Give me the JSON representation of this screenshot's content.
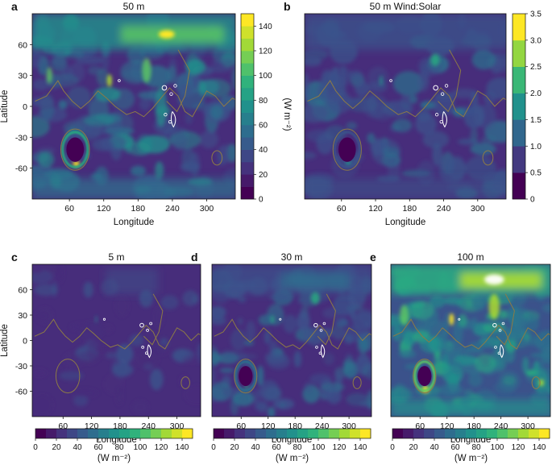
{
  "chart_data": [
    {
      "panel": "a",
      "title": "50 m",
      "type": "heatmap",
      "xlabel": "Longitude",
      "ylabel": "Latitude",
      "x_ticks": [
        60,
        120,
        180,
        240,
        300
      ],
      "y_ticks": [
        60,
        30,
        0,
        -30,
        -60
      ],
      "colorbar": {
        "orientation": "vertical",
        "label": "(W m⁻²)",
        "range": [
          0,
          150
        ],
        "ticks": [
          0,
          20,
          40,
          60,
          80,
          100,
          120,
          140
        ]
      }
    },
    {
      "panel": "b",
      "title": "50 m Wind:Solar",
      "type": "heatmap",
      "xlabel": "Longitude",
      "x_ticks": [
        60,
        120,
        180,
        240,
        300
      ],
      "colorbar": {
        "orientation": "vertical",
        "label": "",
        "range": [
          0,
          3.5
        ],
        "ticks": [
          "0",
          "0.5",
          "1.0",
          "1.5",
          "2.0",
          "2.5",
          "3.0",
          "3.5"
        ]
      }
    },
    {
      "panel": "c",
      "title": "5 m",
      "type": "heatmap",
      "xlabel": "Longitude",
      "ylabel": "Latitude",
      "x_ticks": [
        60,
        120,
        180,
        240,
        300
      ],
      "y_ticks": [
        60,
        30,
        0,
        -30,
        -60
      ],
      "colorbar": {
        "orientation": "horizontal",
        "label": "(W m⁻²)",
        "range": [
          0,
          150
        ],
        "ticks": [
          0,
          20,
          40,
          60,
          80,
          100,
          120,
          140
        ]
      }
    },
    {
      "panel": "d",
      "title": "30 m",
      "type": "heatmap",
      "xlabel": "Longitude",
      "x_ticks": [
        60,
        120,
        180,
        240,
        300
      ],
      "colorbar": {
        "orientation": "horizontal",
        "label": "(W m⁻²)",
        "range": [
          0,
          150
        ],
        "ticks": [
          0,
          20,
          40,
          60,
          80,
          100,
          120,
          140
        ]
      }
    },
    {
      "panel": "e",
      "title": "100 m",
      "type": "heatmap",
      "xlabel": "Longitude",
      "x_ticks": [
        60,
        120,
        180,
        240,
        300
      ],
      "colorbar": {
        "orientation": "horizontal",
        "label": "(W m⁻²)",
        "range": [
          0,
          150
        ],
        "ticks": [
          0,
          20,
          40,
          60,
          80,
          100,
          120,
          140
        ]
      }
    }
  ],
  "colors": {
    "viridis": [
      "#440154",
      "#472d7b",
      "#3b528b",
      "#2c728e",
      "#21918c",
      "#28ae80",
      "#5ec962",
      "#addc30",
      "#fde725"
    ],
    "coast": "#8c7a46",
    "volcano_outline": "#ffffff"
  }
}
